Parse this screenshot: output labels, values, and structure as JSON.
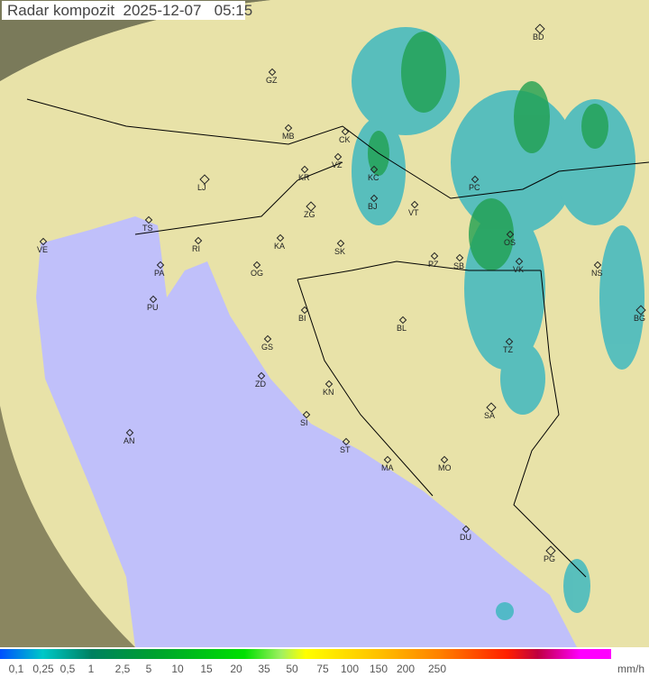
{
  "title": "Radar kompozit  2025-12-07   05:15",
  "colors": {
    "land": "#e8e2a8",
    "sea": "#c0c0fa",
    "outside": "#8a8660",
    "rain_light": "#3fb8c0",
    "rain_mid": "#30a060",
    "rain_heavy": "#20b020"
  },
  "cities": [
    {
      "code": "BD"
    },
    {
      "code": "GZ"
    },
    {
      "code": "MB"
    },
    {
      "code": "CK"
    },
    {
      "code": "VZ"
    },
    {
      "code": "KR"
    },
    {
      "code": "KC"
    },
    {
      "code": "LJ"
    },
    {
      "code": "BJ"
    },
    {
      "code": "ZG"
    },
    {
      "code": "VT"
    },
    {
      "code": "PC"
    },
    {
      "code": "TS"
    },
    {
      "code": "RI"
    },
    {
      "code": "VE"
    },
    {
      "code": "KA"
    },
    {
      "code": "SK"
    },
    {
      "code": "OS"
    },
    {
      "code": "PZ"
    },
    {
      "code": "SB"
    },
    {
      "code": "VK"
    },
    {
      "code": "NS"
    },
    {
      "code": "BG"
    },
    {
      "code": "PA"
    },
    {
      "code": "OG"
    },
    {
      "code": "PU"
    },
    {
      "code": "BI"
    },
    {
      "code": "BL"
    },
    {
      "code": "GS"
    },
    {
      "code": "TZ"
    },
    {
      "code": "ZD"
    },
    {
      "code": "KN"
    },
    {
      "code": "SI"
    },
    {
      "code": "SA"
    },
    {
      "code": "AN"
    },
    {
      "code": "ST"
    },
    {
      "code": "MA"
    },
    {
      "code": "MO"
    },
    {
      "code": "DU"
    },
    {
      "code": "PG"
    }
  ],
  "legend": {
    "ticks": [
      "0,1",
      "0,25",
      "0,5",
      "1",
      "2,5",
      "5",
      "10",
      "15",
      "20",
      "35",
      "50",
      "75",
      "100",
      "150",
      "200",
      "250"
    ],
    "unit": "mm/h"
  }
}
